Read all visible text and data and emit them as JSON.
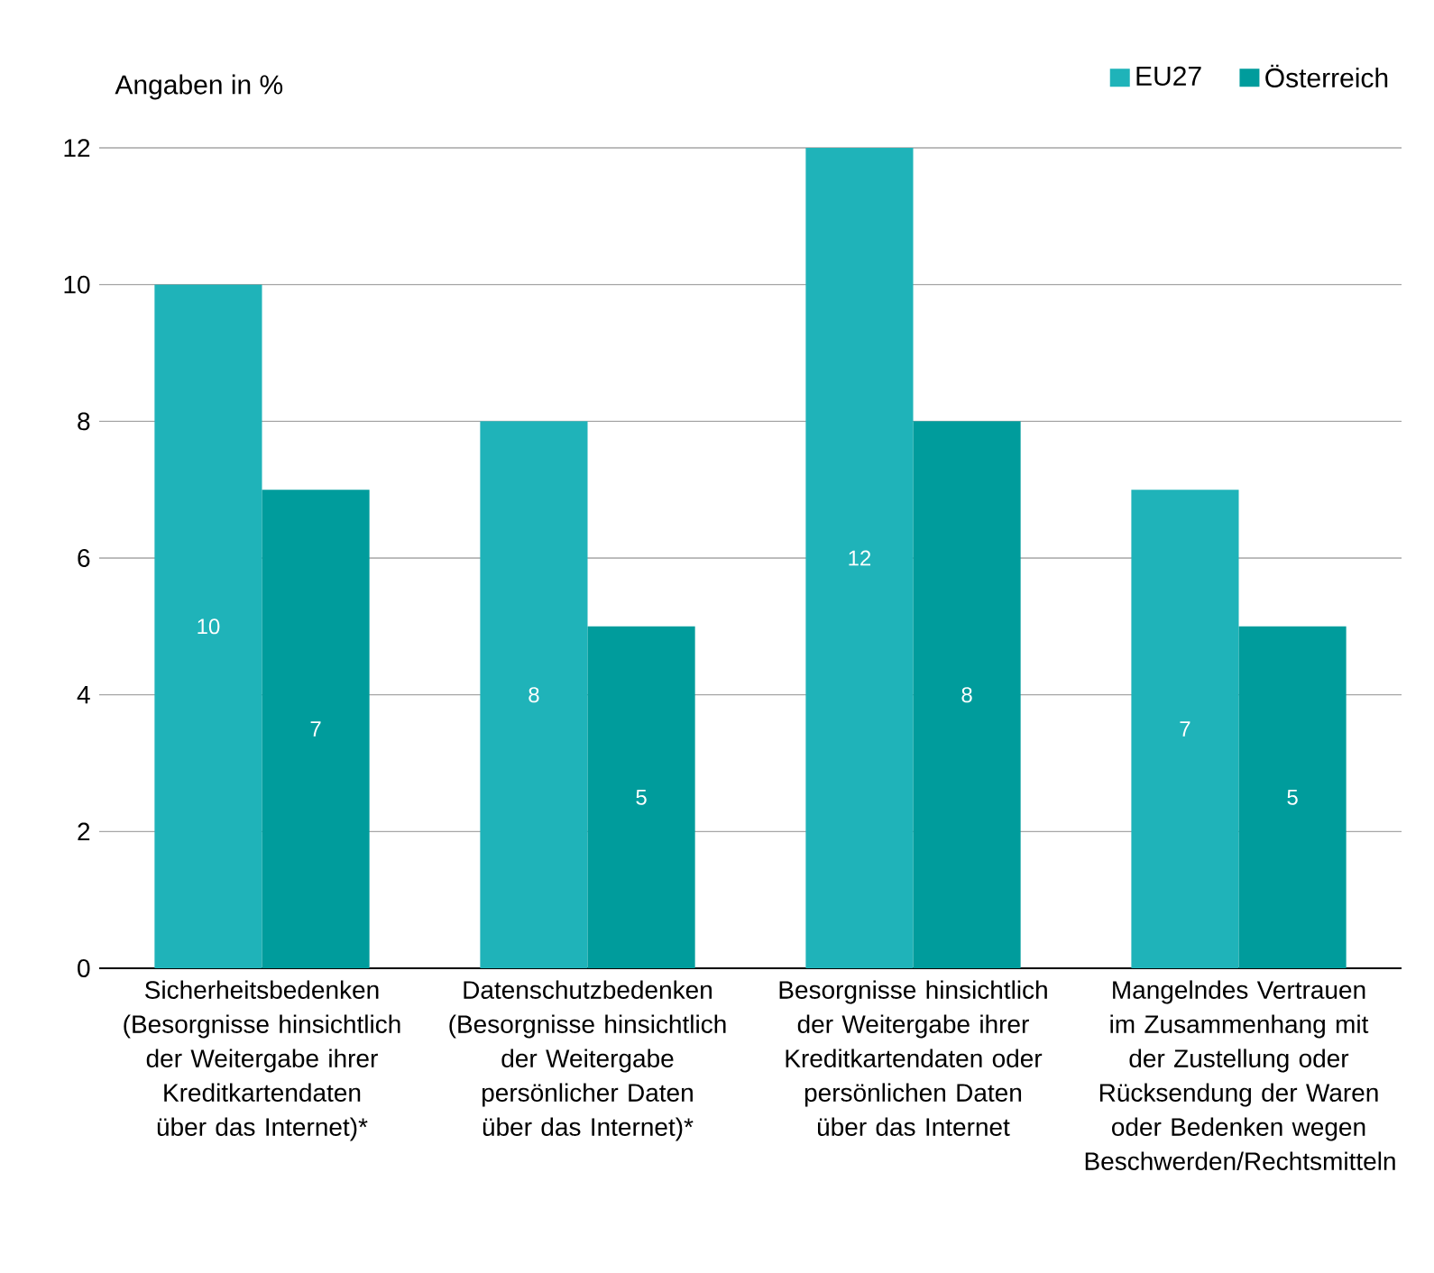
{
  "chart_data": {
    "type": "bar",
    "ylabel": "Angaben in %",
    "categories": [
      "Sicherheitsbedenken (Besorgnisse hinsichtlich der Weitergabe ihrer Kreditkartendaten über das Internet)*",
      "Datenschutzbedenken (Besorgnisse hinsichtlich der Weitergabe persönlicher Daten über das Internet)*",
      "Besorgnisse hinsichtlich der Weitergabe ihrer Kreditkartendaten oder persönlichen Daten über das Internet",
      "Mangelndes Vertrauen im Zusammenhang mit der Zustellung oder Rücksendung der Waren oder Bedenken wegen Beschwerden/Rechtsmitteln"
    ],
    "series": [
      {
        "name": "EU27",
        "color": "#1fb3b9",
        "values": [
          10,
          8,
          12,
          7
        ]
      },
      {
        "name": "Österreich",
        "color": "#009c9c",
        "values": [
          7,
          5,
          8,
          5
        ]
      }
    ],
    "ylim": [
      0,
      12
    ],
    "yticks": [
      0,
      2,
      4,
      6,
      8,
      10,
      12
    ],
    "grid": "y",
    "legend": "top right",
    "data_labels": true
  }
}
